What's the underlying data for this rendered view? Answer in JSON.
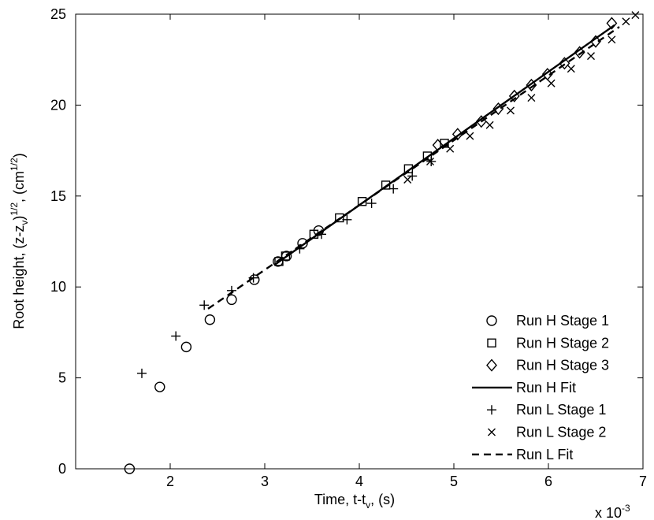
{
  "chart_data": {
    "type": "scatter",
    "title": "",
    "xlabel": "Time, t-t",
    "xlabel_sub": "v",
    "xlabel_tail": ", (s)",
    "ylabel": "Root height, (z-z",
    "ylabel_sub": "v",
    "ylabel_mid": ")",
    "ylabel_sup1": "1/2",
    "ylabel_mid2": ", (cm",
    "ylabel_sup2": "1/2",
    "ylabel_tail": ")",
    "x_multiplier": "x 10",
    "x_multiplier_exp": "-3",
    "xlim": [
      1.0,
      7.0
    ],
    "ylim": [
      0,
      25
    ],
    "xticks": [
      2,
      3,
      4,
      5,
      6,
      7
    ],
    "yticks": [
      0,
      5,
      10,
      15,
      20,
      25
    ],
    "grid": false,
    "legend_position": "bottom-right",
    "series": [
      {
        "name": "Run H Stage 1",
        "marker": "circle",
        "x": [
          1.57,
          1.89,
          2.17,
          2.42,
          2.65,
          2.89,
          3.14,
          3.23,
          3.4,
          3.57
        ],
        "y": [
          0.0,
          4.5,
          6.7,
          8.2,
          9.3,
          10.4,
          11.4,
          11.7,
          12.4,
          13.1
        ]
      },
      {
        "name": "Run H Stage 2",
        "marker": "square",
        "x": [
          3.15,
          3.22,
          3.52,
          3.79,
          4.03,
          4.28,
          4.52,
          4.72,
          4.9
        ],
        "y": [
          11.4,
          11.7,
          12.9,
          13.8,
          14.7,
          15.6,
          16.5,
          17.2,
          17.9
        ]
      },
      {
        "name": "Run H Stage 3",
        "marker": "diamond",
        "x": [
          4.83,
          5.04,
          5.29,
          5.47,
          5.64,
          5.82,
          5.99,
          6.17,
          6.33,
          6.5,
          6.67
        ],
        "y": [
          17.8,
          18.4,
          19.1,
          19.8,
          20.5,
          21.1,
          21.7,
          22.3,
          22.9,
          23.5,
          24.5
        ]
      },
      {
        "name": "Run H Fit",
        "line": "solid",
        "x": [
          3.1,
          6.7
        ],
        "y": [
          11.2,
          24.4
        ]
      },
      {
        "name": "Run L Stage 1",
        "marker": "plus",
        "x": [
          1.7,
          2.06,
          2.36,
          2.65,
          2.88,
          3.37,
          3.6,
          3.87,
          4.13,
          4.36,
          4.56,
          4.76
        ],
        "y": [
          5.25,
          7.3,
          9.0,
          9.8,
          10.5,
          12.1,
          12.9,
          13.7,
          14.6,
          15.4,
          16.1,
          16.9
        ]
      },
      {
        "name": "Run L Stage 2",
        "marker": "cross",
        "x": [
          4.51,
          4.75,
          4.96,
          5.17,
          5.38,
          5.6,
          5.82,
          6.03,
          6.24,
          6.45,
          6.67,
          6.82,
          6.92
        ],
        "y": [
          15.9,
          16.9,
          17.6,
          18.3,
          18.9,
          19.7,
          20.4,
          21.2,
          22.0,
          22.7,
          23.6,
          24.6,
          24.95
        ]
      },
      {
        "name": "Run L Fit",
        "line": "dashed",
        "x": [
          2.4,
          6.75
        ],
        "y": [
          8.8,
          24.3
        ]
      }
    ]
  }
}
